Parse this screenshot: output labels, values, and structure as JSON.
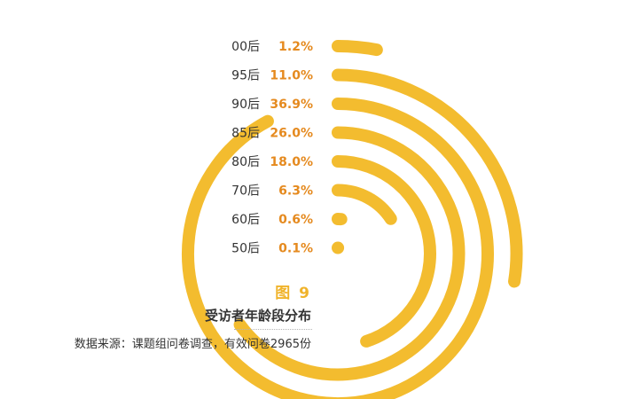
{
  "chart_data": {
    "type": "radial_bar",
    "categories": [
      "00后",
      "95后",
      "90后",
      "85后",
      "80后",
      "70后",
      "60后",
      "50后"
    ],
    "values": [
      1.2,
      11.0,
      36.9,
      26.0,
      18.0,
      6.3,
      0.6,
      0.1
    ],
    "value_labels": [
      "1.2%",
      "11.0%",
      "36.9%",
      "26.0%",
      "18.0%",
      "6.3%",
      "0.6%",
      "0.1%"
    ],
    "unit": "%",
    "max_value": 40,
    "bar_color": "#f3bc2f",
    "value_label_color": "#e58a1f"
  },
  "figure": {
    "label": "图 9",
    "title": "受访者年龄段分布",
    "source": "数据来源：课题组问卷调查，有效问卷2965份"
  }
}
